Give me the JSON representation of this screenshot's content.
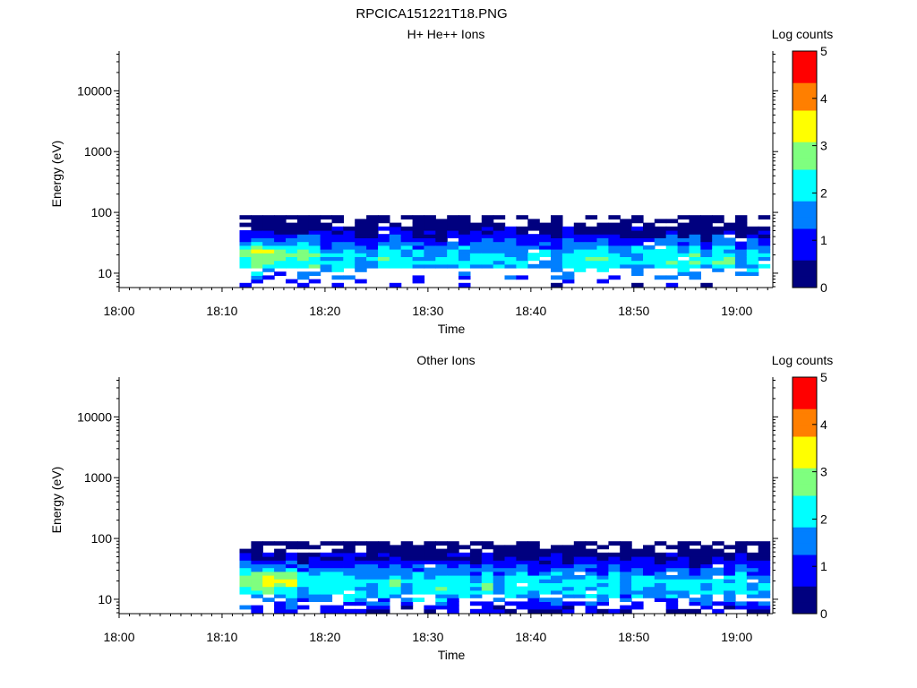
{
  "figure": {
    "title": "RPCICA151221T18.PNG"
  },
  "colormap": [
    "#00007f",
    "#0000ff",
    "#007fff",
    "#00ffff",
    "#7fff7f",
    "#ffff00",
    "#ff7f00",
    "#ff0000",
    "#7f0000"
  ],
  "chart_data": [
    {
      "type": "heatmap",
      "title": "H+ He++ Ions",
      "xlabel": "Time",
      "ylabel": "Energy (eV)",
      "x_ticks": [
        "18:00",
        "18:10",
        "18:20",
        "18:30",
        "18:40",
        "18:50",
        "19:00"
      ],
      "x_tick_minutes": [
        0,
        10,
        20,
        30,
        40,
        50,
        60
      ],
      "xlim_minutes": [
        0,
        63.5
      ],
      "y_scale": "log",
      "ylim": [
        5.8,
        45000
      ],
      "y_ticks": [
        "10",
        "100",
        "1000",
        "10000"
      ],
      "y_tick_values": [
        10,
        100,
        1000,
        10000
      ],
      "colorbar": {
        "label": "Log counts",
        "range": [
          0,
          5
        ],
        "ticks": [
          "0",
          "1",
          "2",
          "3",
          "4",
          "5"
        ]
      },
      "data_extent": {
        "time_minutes": [
          11.7,
          63.2
        ],
        "energy_ev": [
          6,
          90
        ],
        "peak_log_counts": 3.4,
        "peak_time_minutes": 14.5,
        "peak_energy_ev": 22
      }
    },
    {
      "type": "heatmap",
      "title": "Other Ions",
      "xlabel": "Time",
      "ylabel": "Energy (eV)",
      "x_ticks": [
        "18:00",
        "18:10",
        "18:20",
        "18:30",
        "18:40",
        "18:50",
        "19:00"
      ],
      "x_tick_minutes": [
        0,
        10,
        20,
        30,
        40,
        50,
        60
      ],
      "xlim_minutes": [
        0,
        63.5
      ],
      "y_scale": "log",
      "ylim": [
        5.8,
        45000
      ],
      "y_ticks": [
        "10",
        "100",
        "1000",
        "10000"
      ],
      "y_tick_values": [
        10,
        100,
        1000,
        10000
      ],
      "colorbar": {
        "label": "Log counts",
        "range": [
          0,
          5
        ],
        "ticks": [
          "0",
          "1",
          "2",
          "3",
          "4",
          "5"
        ]
      },
      "data_extent": {
        "time_minutes": [
          11.7,
          63.2
        ],
        "energy_ev": [
          6,
          90
        ],
        "peak_log_counts": 3.4,
        "peak_time_minutes": 14.5,
        "peak_energy_ev": 22
      }
    }
  ]
}
